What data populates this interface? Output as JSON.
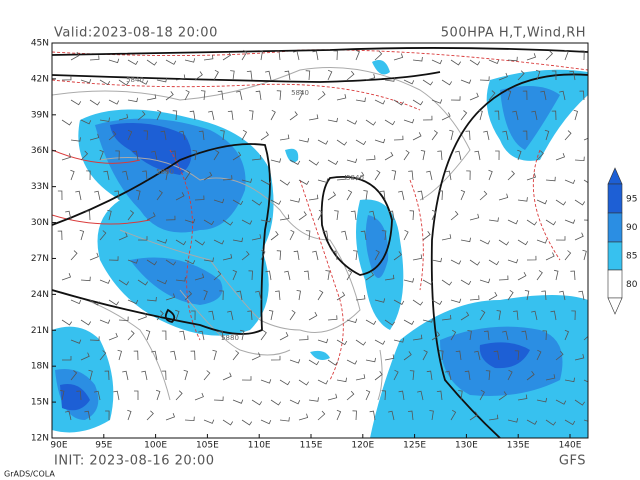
{
  "header": {
    "valid": "Valid:2023-08-18 20:00",
    "title": "500HPA H,T,Wind,RH"
  },
  "footer": {
    "init": "INIT: 2023-08-16 20:00",
    "model": "GFS",
    "credit": "GrADS/COLA"
  },
  "latitude_labels": [
    "45N",
    "42N",
    "39N",
    "36N",
    "33N",
    "30N",
    "27N",
    "24N",
    "21N",
    "18N",
    "15N",
    "12N"
  ],
  "longitude_labels": [
    "90E",
    "95E",
    "100E",
    "105E",
    "110E",
    "115E",
    "120E",
    "125E",
    "130E",
    "135E",
    "140E"
  ],
  "colorbar_labels": [
    "95",
    "90",
    "85",
    "80"
  ],
  "contour_labels": [
    "5840",
    "5840",
    "5880",
    "5840",
    "5880"
  ]
}
